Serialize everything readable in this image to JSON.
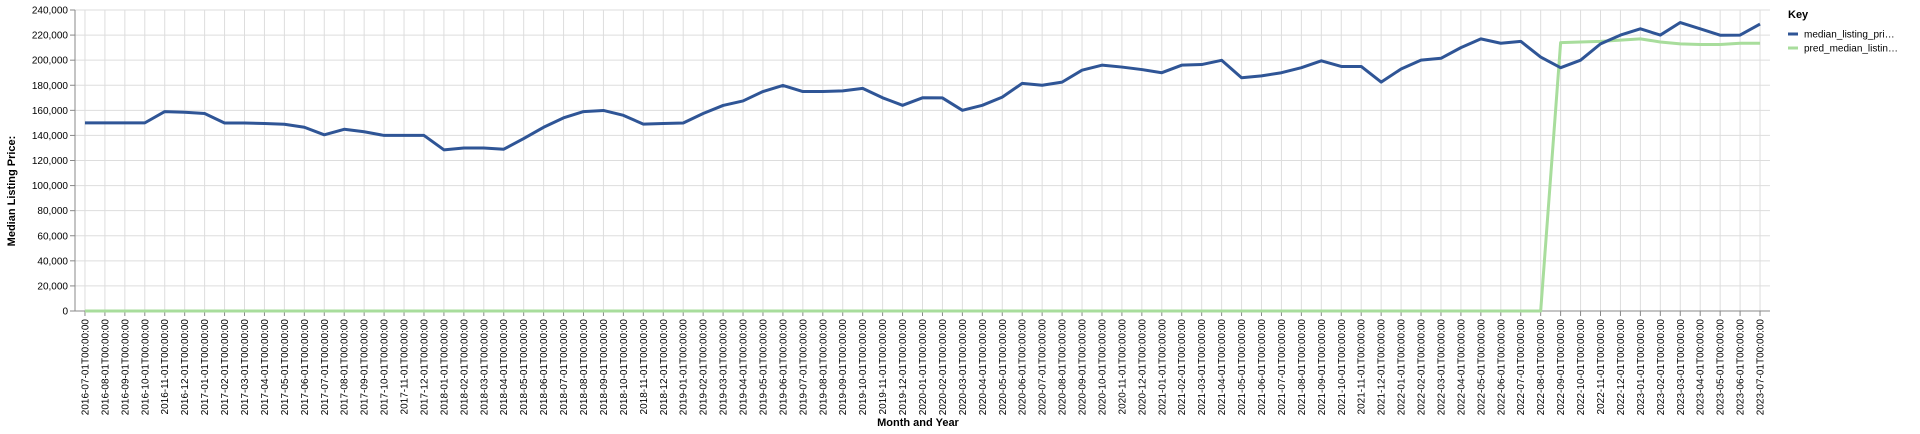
{
  "chart_data": {
    "type": "line",
    "xlabel": "Month and Year",
    "ylabel": "Median Listing Price:",
    "ylim": [
      0,
      240000
    ],
    "y_ticks": [
      0,
      20000,
      40000,
      60000,
      80000,
      100000,
      120000,
      140000,
      160000,
      180000,
      200000,
      220000,
      240000
    ],
    "y_tick_labels": [
      "0",
      "20,000",
      "40,000",
      "60,000",
      "80,000",
      "100,000",
      "120,000",
      "140,000",
      "160,000",
      "180,000",
      "200,000",
      "220,000",
      "240,000"
    ],
    "grid": true,
    "legend": {
      "title": "Key",
      "placement": "right",
      "entries": [
        "median_listing_pri…",
        "pred_median_listin…"
      ]
    },
    "categories": [
      "2016-07-01T00:00:00",
      "2016-08-01T00:00:00",
      "2016-09-01T00:00:00",
      "2016-10-01T00:00:00",
      "2016-11-01T00:00:00",
      "2016-12-01T00:00:00",
      "2017-01-01T00:00:00",
      "2017-02-01T00:00:00",
      "2017-03-01T00:00:00",
      "2017-04-01T00:00:00",
      "2017-05-01T00:00:00",
      "2017-06-01T00:00:00",
      "2017-07-01T00:00:00",
      "2017-08-01T00:00:00",
      "2017-09-01T00:00:00",
      "2017-10-01T00:00:00",
      "2017-11-01T00:00:00",
      "2017-12-01T00:00:00",
      "2018-01-01T00:00:00",
      "2018-02-01T00:00:00",
      "2018-03-01T00:00:00",
      "2018-04-01T00:00:00",
      "2018-05-01T00:00:00",
      "2018-06-01T00:00:00",
      "2018-07-01T00:00:00",
      "2018-08-01T00:00:00",
      "2018-09-01T00:00:00",
      "2018-10-01T00:00:00",
      "2018-11-01T00:00:00",
      "2018-12-01T00:00:00",
      "2019-01-01T00:00:00",
      "2019-02-01T00:00:00",
      "2019-03-01T00:00:00",
      "2019-04-01T00:00:00",
      "2019-05-01T00:00:00",
      "2019-06-01T00:00:00",
      "2019-07-01T00:00:00",
      "2019-08-01T00:00:00",
      "2019-09-01T00:00:00",
      "2019-10-01T00:00:00",
      "2019-11-01T00:00:00",
      "2019-12-01T00:00:00",
      "2020-01-01T00:00:00",
      "2020-02-01T00:00:00",
      "2020-03-01T00:00:00",
      "2020-04-01T00:00:00",
      "2020-05-01T00:00:00",
      "2020-06-01T00:00:00",
      "2020-07-01T00:00:00",
      "2020-08-01T00:00:00",
      "2020-09-01T00:00:00",
      "2020-10-01T00:00:00",
      "2020-11-01T00:00:00",
      "2020-12-01T00:00:00",
      "2021-01-01T00:00:00",
      "2021-02-01T00:00:00",
      "2021-03-01T00:00:00",
      "2021-04-01T00:00:00",
      "2021-05-01T00:00:00",
      "2021-06-01T00:00:00",
      "2021-07-01T00:00:00",
      "2021-08-01T00:00:00",
      "2021-09-01T00:00:00",
      "2021-10-01T00:00:00",
      "2021-11-01T00:00:00",
      "2021-12-01T00:00:00",
      "2022-01-01T00:00:00",
      "2022-02-01T00:00:00",
      "2022-03-01T00:00:00",
      "2022-04-01T00:00:00",
      "2022-05-01T00:00:00",
      "2022-06-01T00:00:00",
      "2022-07-01T00:00:00",
      "2022-08-01T00:00:00",
      "2022-09-01T00:00:00",
      "2022-10-01T00:00:00",
      "2022-11-01T00:00:00",
      "2022-12-01T00:00:00",
      "2023-01-01T00:00:00",
      "2023-02-01T00:00:00",
      "2023-03-01T00:00:00",
      "2023-04-01T00:00:00",
      "2023-05-01T00:00:00",
      "2023-06-01T00:00:00",
      "2023-07-01T00:00:00"
    ],
    "series": [
      {
        "name": "median_listing_pri…",
        "color": "#2f5596",
        "values": [
          150000,
          150000,
          150000,
          150000,
          159000,
          158500,
          157500,
          149900,
          149900,
          149500,
          148900,
          146500,
          140500,
          144900,
          142900,
          140000,
          140000,
          140000,
          128500,
          130000,
          130000,
          129000,
          137500,
          146500,
          154000,
          159000,
          159900,
          156000,
          149000,
          149500,
          149900,
          157500,
          163900,
          167500,
          175000,
          179900,
          175000,
          175000,
          175500,
          177500,
          170000,
          164000,
          170000,
          169900,
          160000,
          164000,
          170500,
          181500,
          180000,
          182500,
          192000,
          196000,
          194500,
          192500,
          190000,
          196000,
          196500,
          199900,
          186000,
          187500,
          190000,
          194000,
          199500,
          195000,
          195000,
          182500,
          193000,
          200000,
          201500,
          210000,
          217000,
          213500,
          215000,
          202500,
          194000,
          200000,
          213000,
          220000,
          225000,
          220000,
          230000,
          225000,
          219900,
          220000,
          228800
        ]
      },
      {
        "name": "pred_median_listin…",
        "color": "#a8dd9c",
        "values": [
          0,
          0,
          0,
          0,
          0,
          0,
          0,
          0,
          0,
          0,
          0,
          0,
          0,
          0,
          0,
          0,
          0,
          0,
          0,
          0,
          0,
          0,
          0,
          0,
          0,
          0,
          0,
          0,
          0,
          0,
          0,
          0,
          0,
          0,
          0,
          0,
          0,
          0,
          0,
          0,
          0,
          0,
          0,
          0,
          0,
          0,
          0,
          0,
          0,
          0,
          0,
          0,
          0,
          0,
          0,
          0,
          0,
          0,
          0,
          0,
          0,
          0,
          0,
          0,
          0,
          0,
          0,
          0,
          0,
          0,
          0,
          0,
          0,
          0,
          214000,
          214500,
          215000,
          216000,
          217000,
          214500,
          213000,
          212500,
          212500,
          213500,
          213500
        ]
      }
    ]
  }
}
